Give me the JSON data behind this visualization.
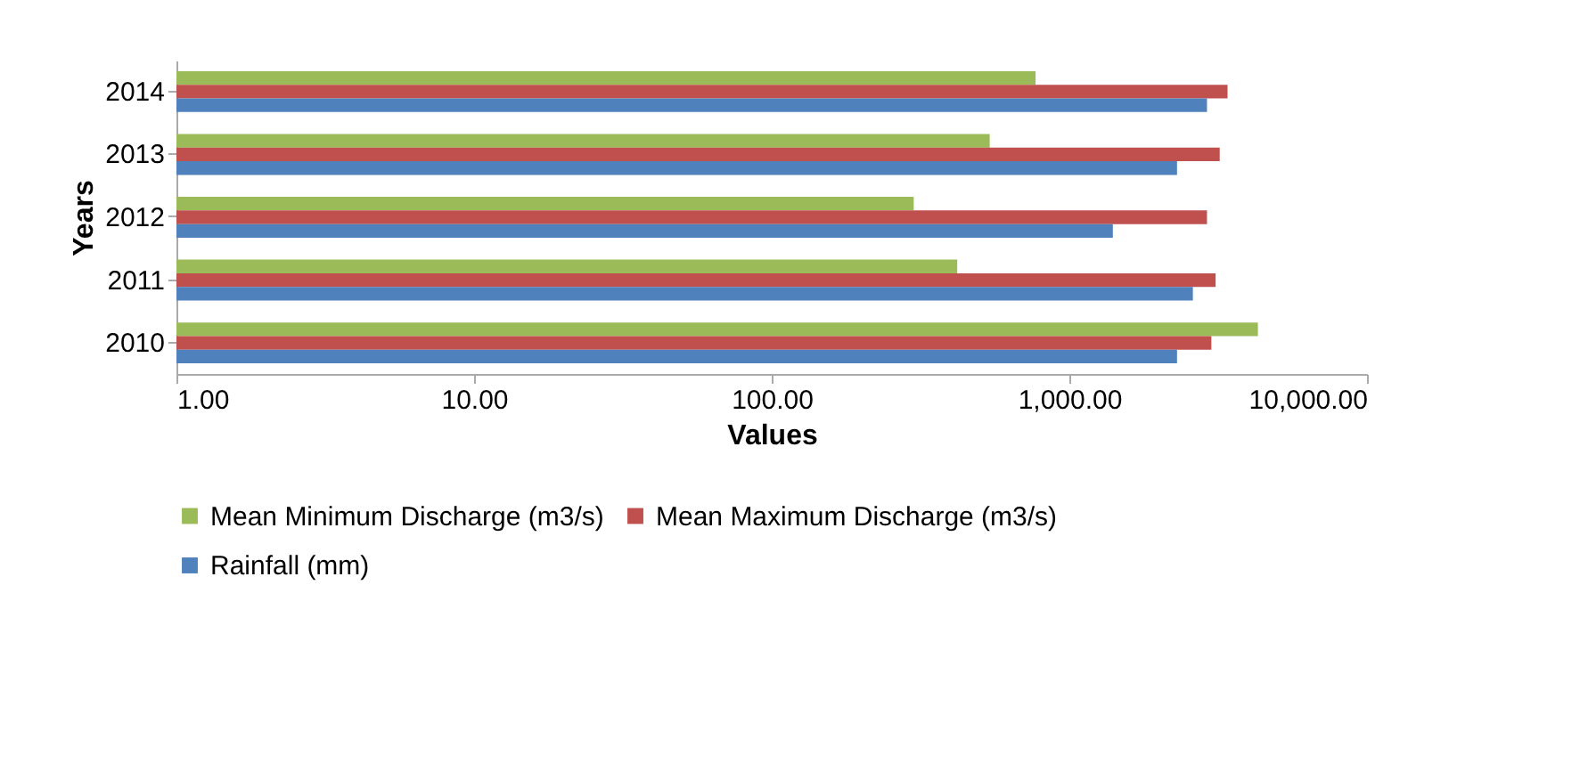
{
  "chart_data": {
    "type": "bar",
    "orientation": "horizontal",
    "log": "x",
    "xlabel": "Values",
    "ylabel": "Years",
    "categories": [
      "2014",
      "2013",
      "2012",
      "2011",
      "2010"
    ],
    "series": [
      {
        "name": "Mean Minimum Discharge (m3/s)",
        "color": "#9bbb59",
        "values": [
          770,
          540,
          300,
          420,
          4300
        ]
      },
      {
        "name": "Mean Maximum Discharge (m3/s)",
        "color": "#c0504d",
        "values": [
          3400,
          3200,
          2900,
          3100,
          3000
        ]
      },
      {
        "name": "Rainfall (mm)",
        "color": "#4f81bd",
        "values": [
          2900,
          2300,
          1400,
          2600,
          2300
        ]
      }
    ],
    "xlim": [
      1,
      10000
    ],
    "xticks": [
      {
        "value": 1,
        "label": "1.00"
      },
      {
        "value": 10,
        "label": "10.00"
      },
      {
        "value": 100,
        "label": "100.00"
      },
      {
        "value": 1000,
        "label": "1,000.00"
      },
      {
        "value": 10000,
        "label": "10,000.00"
      }
    ],
    "legend": "bottom",
    "grid": false
  }
}
